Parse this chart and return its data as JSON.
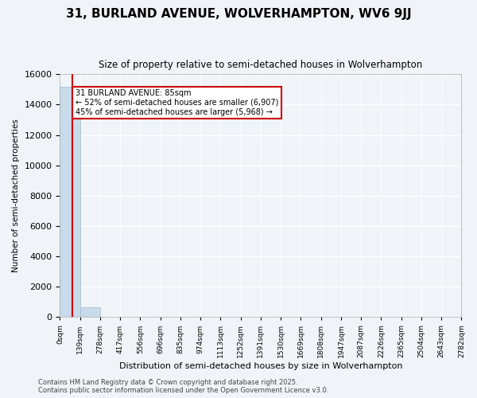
{
  "title": "31, BURLAND AVENUE, WOLVERHAMPTON, WV6 9JJ",
  "subtitle": "Size of property relative to semi-detached houses in Wolverhampton",
  "xlabel": "Distribution of semi-detached houses by size in Wolverhampton",
  "ylabel": "Number of semi-detached properties",
  "property_size": 85,
  "property_label": "31 BURLAND AVENUE: 85sqm",
  "pct_smaller": 52,
  "pct_larger": 45,
  "n_smaller": 6907,
  "n_larger": 5968,
  "annotation_smaller": "← 52% of semi-detached houses are smaller (6,907)",
  "annotation_larger": "45% of semi-detached houses are larger (5,968) →",
  "footer_line1": "Contains HM Land Registry data © Crown copyright and database right 2025.",
  "footer_line2": "Contains public sector information licensed under the Open Government Licence v3.0.",
  "bin_edges": [
    0,
    139,
    278,
    417,
    556,
    696,
    835,
    974,
    1113,
    1252,
    1391,
    1530,
    1669,
    1808,
    1947,
    2087,
    2226,
    2365,
    2504,
    2643,
    2782
  ],
  "bin_labels": [
    "0sqm",
    "139sqm",
    "278sqm",
    "417sqm",
    "556sqm",
    "696sqm",
    "835sqm",
    "974sqm",
    "1113sqm",
    "1252sqm",
    "1391sqm",
    "1530sqm",
    "1669sqm",
    "1808sqm",
    "1947sqm",
    "2087sqm",
    "2226sqm",
    "2365sqm",
    "2504sqm",
    "2643sqm",
    "2782sqm"
  ],
  "bar_heights": [
    15200,
    620,
    20,
    5,
    2,
    1,
    1,
    0,
    0,
    0,
    0,
    0,
    0,
    0,
    0,
    0,
    0,
    0,
    0,
    0
  ],
  "bar_color": "#c9daea",
  "bar_edgecolor": "#a0b8d0",
  "redline_color": "#cc0000",
  "annotation_box_edgecolor": "#cc0000",
  "annotation_box_facecolor": "#ffffff",
  "background_color": "#f0f4f8",
  "grid_color": "#ffffff",
  "ylim": [
    0,
    16000
  ],
  "yticks": [
    0,
    2000,
    4000,
    6000,
    8000,
    10000,
    12000,
    14000,
    16000
  ]
}
